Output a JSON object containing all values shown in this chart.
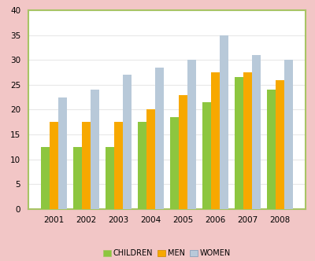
{
  "years": [
    "2001",
    "2002",
    "2003",
    "2004",
    "2005",
    "2006",
    "2007",
    "2008"
  ],
  "children": [
    12.5,
    12.5,
    12.5,
    17.5,
    18.5,
    21.5,
    26.5,
    24.0
  ],
  "men": [
    17.5,
    17.5,
    17.5,
    20.0,
    23.0,
    27.5,
    27.5,
    26.0
  ],
  "women": [
    22.5,
    24.0,
    27.0,
    28.5,
    30.0,
    35.0,
    31.0,
    30.0
  ],
  "children_color": "#8DC63F",
  "men_color": "#F7A800",
  "women_color": "#B8C9D9",
  "ylim": [
    0,
    40
  ],
  "yticks": [
    0,
    5,
    10,
    15,
    20,
    25,
    30,
    35,
    40
  ],
  "legend_labels": [
    "CHILDREN",
    "MEN",
    "WOMEN"
  ],
  "bar_width": 0.27,
  "fig_bg_color": "#F2C6C6",
  "plot_bg_color": "#FFFFFF",
  "plot_border_color": "#A8C465",
  "grid_color": "#E8E8E8"
}
